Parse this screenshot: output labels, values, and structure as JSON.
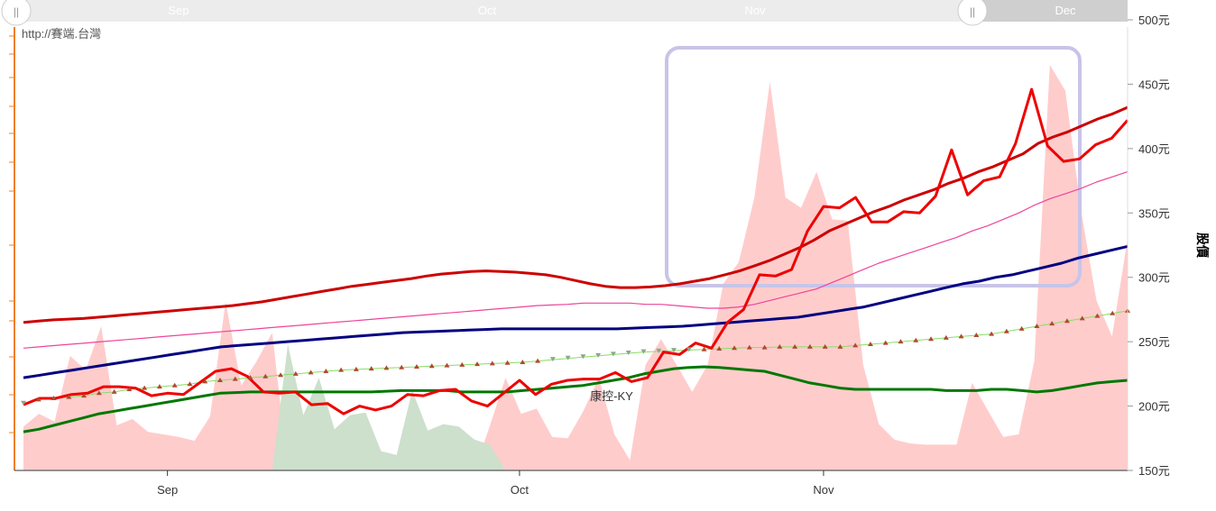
{
  "watermark": "http://賽端.台灣",
  "navigator": {
    "labels": [
      "Sep",
      "Oct",
      "Nov",
      "Dec"
    ],
    "handle_glyph": "||"
  },
  "chart_data": {
    "type": "line",
    "stock_label": "康控-KY",
    "ylabel": "股價",
    "ylim": [
      150,
      500
    ],
    "y_ticks": [
      {
        "value": 150,
        "label": "150元"
      },
      {
        "value": 200,
        "label": "200元"
      },
      {
        "value": 250,
        "label": "250元"
      },
      {
        "value": 300,
        "label": "300元"
      },
      {
        "value": 350,
        "label": "350元"
      },
      {
        "value": 400,
        "label": "400元"
      },
      {
        "value": 450,
        "label": "450元"
      },
      {
        "value": 500,
        "label": "500元"
      }
    ],
    "x_ticks": [
      {
        "index": 9,
        "label": "Sep"
      },
      {
        "index": 31,
        "label": "Oct"
      },
      {
        "index": 50,
        "label": "Nov"
      }
    ],
    "colors": {
      "price": "#ee0000",
      "ma_red": "#cc0000",
      "ma_pink": "#ee4499",
      "ma_navy": "#000080",
      "ma_green": "#007700",
      "trend_line": "#88dd66",
      "volume_up": "#ffcccc",
      "volume_down": "#cce0cc",
      "marker_up": "#b04a2c",
      "marker_down": "#8aa88a",
      "highlight_box": "#c8c4e8",
      "axis_accent": "#f07f1f"
    },
    "series": [
      {
        "key": "price",
        "values": [
          201,
          206,
          206,
          209,
          210,
          215,
          215,
          214,
          208,
          210,
          209,
          218,
          227,
          229,
          223,
          211,
          210,
          211,
          201,
          202,
          194,
          200,
          197,
          200,
          209,
          208,
          212,
          213,
          204,
          200,
          210,
          220,
          209,
          217,
          220,
          221,
          221,
          226,
          219,
          222,
          242,
          240,
          249,
          245,
          265,
          275,
          302,
          301,
          306,
          336,
          355,
          354,
          362,
          343,
          343,
          351,
          350,
          363,
          399,
          364,
          375,
          378,
          404,
          446,
          402,
          390,
          392,
          403,
          408,
          422
        ]
      },
      {
        "key": "ma_red",
        "values": [
          265,
          266,
          267,
          267.5,
          268,
          269,
          270,
          271,
          272,
          273,
          274,
          275,
          276,
          277,
          278,
          279.5,
          281,
          283,
          285,
          287,
          289,
          291,
          293,
          294.5,
          296,
          297.5,
          299,
          301,
          302.5,
          303.5,
          304.5,
          305,
          304.5,
          304,
          303,
          302,
          300,
          297.5,
          295,
          293,
          292,
          292,
          292.5,
          293.5,
          295,
          297,
          299,
          302,
          305,
          309,
          313,
          318,
          323,
          329,
          336,
          341,
          346,
          351,
          355,
          360,
          364,
          368,
          373,
          377,
          382,
          386,
          391,
          396,
          404,
          409,
          413,
          418,
          423,
          427,
          432
        ]
      },
      {
        "key": "ma_pink",
        "values": [
          245,
          246,
          247,
          248,
          249,
          250,
          251,
          252,
          253,
          254,
          255,
          256,
          257,
          258,
          259,
          260,
          261,
          262,
          263,
          264,
          265,
          266,
          267,
          268,
          269,
          270,
          271,
          272,
          273,
          274,
          275,
          276,
          277,
          278,
          278.5,
          279,
          280,
          280,
          280,
          280,
          279,
          279,
          278,
          277,
          276,
          276,
          277,
          279,
          282,
          285,
          288,
          291,
          296,
          301,
          306,
          311,
          315,
          319,
          323,
          327,
          331,
          336,
          340,
          345,
          350,
          356,
          361,
          365,
          369,
          374,
          378,
          382
        ]
      },
      {
        "key": "ma_navy",
        "values": [
          222,
          224,
          226,
          228,
          230,
          232,
          234,
          236,
          238,
          240,
          242,
          244,
          246,
          247,
          248,
          249,
          250,
          251,
          252,
          253,
          254,
          255,
          256,
          257,
          257.5,
          258,
          258.5,
          259,
          259.5,
          260,
          260,
          260,
          260,
          260,
          260,
          260,
          260,
          260.5,
          261,
          261.5,
          262,
          263,
          264,
          265,
          266,
          267,
          268,
          269,
          271,
          273,
          275,
          277,
          280,
          283,
          286,
          289,
          292,
          295,
          297,
          300,
          302,
          305,
          308,
          311,
          315,
          318,
          321,
          324
        ]
      },
      {
        "key": "ma_green",
        "values": [
          180,
          182,
          185,
          188,
          191,
          194,
          196,
          198,
          200,
          202,
          204,
          206,
          208,
          210,
          210.5,
          211,
          211,
          211,
          211,
          211,
          211,
          211,
          211,
          211,
          211.5,
          212,
          212,
          212,
          212,
          211,
          211,
          211,
          211,
          212,
          213,
          214,
          215,
          216,
          218,
          220,
          222,
          225,
          227,
          229,
          230,
          230.5,
          230,
          229,
          228,
          227,
          224,
          221,
          218,
          216,
          214,
          213,
          213,
          213,
          213,
          213,
          213,
          212,
          212,
          212,
          213,
          213,
          212,
          211,
          212,
          214,
          216,
          218,
          219,
          220
        ]
      },
      {
        "key": "trend_line",
        "values": [
          202,
          205,
          206,
          207,
          208,
          210,
          211,
          213,
          214,
          215,
          216,
          217,
          219,
          220,
          221,
          222,
          223,
          224,
          225,
          226,
          227,
          228,
          228.5,
          229,
          229.5,
          230,
          230.5,
          231,
          231.5,
          232,
          232.5,
          233,
          233.5,
          234,
          235,
          236,
          237,
          238,
          239,
          240,
          241,
          242,
          242.5,
          243,
          243.5,
          244,
          244.5,
          245,
          245.5,
          245.5,
          246,
          246,
          246,
          246,
          246,
          247,
          248,
          249,
          250,
          251,
          252,
          253,
          254,
          255,
          256,
          258,
          260,
          262,
          264,
          266,
          268,
          270,
          272,
          274
        ]
      }
    ],
    "volume_up": [
      184,
      194,
      188,
      239,
      228,
      262,
      185,
      190,
      180,
      178,
      176,
      173,
      192,
      281,
      216,
      235,
      257,
      0,
      0,
      0,
      0,
      0,
      0,
      0,
      0,
      0,
      0,
      0,
      0,
      0,
      185,
      222,
      194,
      198,
      176,
      175,
      196,
      222,
      178,
      158,
      232,
      252,
      232,
      211,
      232,
      295,
      312,
      362,
      452,
      362,
      354,
      382,
      345,
      344,
      232,
      186,
      174,
      171,
      170,
      170,
      170,
      218,
      197,
      176,
      178,
      235,
      465,
      445,
      352,
      282,
      254,
      330
    ],
    "volume_down": [
      0,
      0,
      0,
      0,
      0,
      0,
      0,
      0,
      0,
      0,
      0,
      0,
      0,
      0,
      0,
      0,
      0,
      248,
      193,
      222,
      182,
      193,
      195,
      165,
      162,
      212,
      181,
      186,
      184,
      174,
      170,
      0,
      0,
      0,
      0,
      0,
      0,
      0,
      0,
      0,
      0,
      0,
      0,
      0,
      0,
      0,
      0,
      0,
      0,
      0,
      0,
      0,
      0,
      0,
      0,
      0,
      0,
      0,
      0,
      0,
      0,
      0,
      0,
      0,
      0,
      0,
      0,
      0,
      0,
      0,
      0,
      0
    ]
  }
}
